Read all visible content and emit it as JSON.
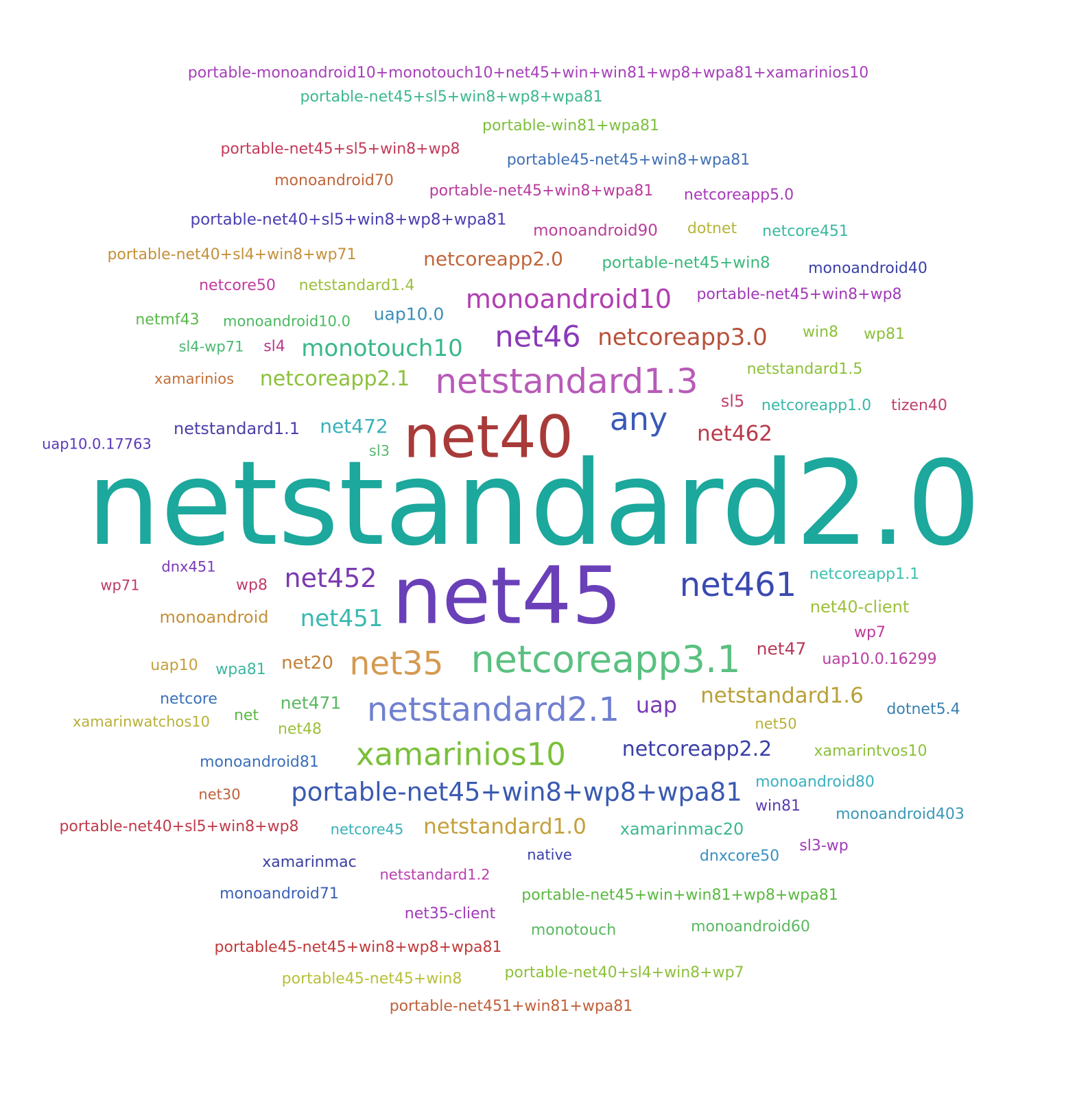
{
  "words": [
    {
      "text": "portable-monoandroid10+monotouch10+net45+win+win81+wp8+wpa81+xamarinios10",
      "color": "#a640b8"
    },
    {
      "text": "portable-net45+sl5+win8+wp8+wpa81",
      "color": "#3db88e"
    },
    {
      "text": "portable-win81+wpa81",
      "color": "#7bbf3a"
    },
    {
      "text": "portable-net45+sl5+win8+wp8",
      "color": "#c23a5a"
    },
    {
      "text": "portable45-net45+win8+wpa81",
      "color": "#3f6fb5"
    },
    {
      "text": "monoandroid70",
      "color": "#c0653a"
    },
    {
      "text": "portable-net45+win8+wpa81",
      "color": "#b83a9e"
    },
    {
      "text": "netcoreapp5.0",
      "color": "#a63ab8"
    },
    {
      "text": "portable-net40+sl5+win8+wp8+wpa81",
      "color": "#4a3fb0"
    },
    {
      "text": "monoandroid90",
      "color": "#b8409a"
    },
    {
      "text": "dotnet",
      "color": "#b5b53a"
    },
    {
      "text": "netcore451",
      "color": "#3ab8a0"
    },
    {
      "text": "portable-net40+sl4+win8+wp71",
      "color": "#c4903a"
    },
    {
      "text": "netcoreapp2.0",
      "color": "#c0663a"
    },
    {
      "text": "portable-net45+win8",
      "color": "#3ab87a"
    },
    {
      "text": "monoandroid40",
      "color": "#3a3fa8"
    },
    {
      "text": "netcore50",
      "color": "#c03aa0"
    },
    {
      "text": "netstandard1.4",
      "color": "#9cbf3a"
    },
    {
      "text": "monoandroid10",
      "color": "#b040b0"
    },
    {
      "text": "portable-net45+win8+wp8",
      "color": "#a03ab8"
    },
    {
      "text": "netmf43",
      "color": "#5ab84a"
    },
    {
      "text": "monoandroid10.0",
      "color": "#4ab860"
    },
    {
      "text": "uap10.0",
      "color": "#3a90b8"
    },
    {
      "text": "net46",
      "color": "#8a3ab8"
    },
    {
      "text": "netcoreapp3.0",
      "color": "#b8503a"
    },
    {
      "text": "win8",
      "color": "#8cc03a"
    },
    {
      "text": "wp81",
      "color": "#8cc03a"
    },
    {
      "text": "sl4-wp71",
      "color": "#4ab870"
    },
    {
      "text": "sl4",
      "color": "#b83a8a"
    },
    {
      "text": "monotouch10",
      "color": "#3ab88a"
    },
    {
      "text": "netstandard1.3",
      "color": "#b85ab8"
    },
    {
      "text": "netstandard1.5",
      "color": "#8cc03a"
    },
    {
      "text": "xamarinios",
      "color": "#c0703a"
    },
    {
      "text": "netcoreapp2.1",
      "color": "#8cc03a"
    },
    {
      "text": "sl5",
      "color": "#c0406a"
    },
    {
      "text": "netcoreapp1.0",
      "color": "#3ab8a8"
    },
    {
      "text": "tizen40",
      "color": "#c0406a"
    },
    {
      "text": "any",
      "color": "#3a5ab8"
    },
    {
      "text": "netstandard1.1",
      "color": "#4a3fa8"
    },
    {
      "text": "net472",
      "color": "#3ab0b8"
    },
    {
      "text": "net40",
      "color": "#a83a3a"
    },
    {
      "text": "net462",
      "color": "#b83a4a"
    },
    {
      "text": "uap10.0.17763",
      "color": "#5a3ab8"
    },
    {
      "text": "sl3",
      "color": "#5ab870"
    },
    {
      "text": "netstandard2.0",
      "color": "#1ca89c"
    },
    {
      "text": "dnx451",
      "color": "#7a3ab8"
    },
    {
      "text": "wp71",
      "color": "#c03a6a"
    },
    {
      "text": "wp8",
      "color": "#c03a6a"
    },
    {
      "text": "net452",
      "color": "#7a3ab0"
    },
    {
      "text": "net45",
      "color": "#6a40b8"
    },
    {
      "text": "net461",
      "color": "#3a4ab0"
    },
    {
      "text": "netcoreapp1.1",
      "color": "#3ac0b0"
    },
    {
      "text": "monoandroid",
      "color": "#c4903a"
    },
    {
      "text": "net451",
      "color": "#3ab8b0"
    },
    {
      "text": "net40-client",
      "color": "#9cc03a"
    },
    {
      "text": "wp7",
      "color": "#c03a9a"
    },
    {
      "text": "net47",
      "color": "#b83a5a"
    },
    {
      "text": "uap10.0.16299",
      "color": "#b840a0"
    },
    {
      "text": "uap10",
      "color": "#c4a03a"
    },
    {
      "text": "wpa81",
      "color": "#3ab8a0"
    },
    {
      "text": "net20",
      "color": "#c0803a"
    },
    {
      "text": "net35",
      "color": "#d49a50"
    },
    {
      "text": "netcoreapp3.1",
      "color": "#5ac080"
    },
    {
      "text": "netcore",
      "color": "#3a70b8"
    },
    {
      "text": "net",
      "color": "#5ab840"
    },
    {
      "text": "net471",
      "color": "#5ab860"
    },
    {
      "text": "netstandard2.1",
      "color": "#7080d0"
    },
    {
      "text": "uap",
      "color": "#7a3ab8"
    },
    {
      "text": "netstandard1.6",
      "color": "#b8a03a"
    },
    {
      "text": "dotnet5.4",
      "color": "#3a80b0"
    },
    {
      "text": "xamarinwatchos10",
      "color": "#b8b03a"
    },
    {
      "text": "net48",
      "color": "#9cc03a"
    },
    {
      "text": "net50",
      "color": "#b8b03a"
    },
    {
      "text": "xamarinios10",
      "color": "#7abf3a"
    },
    {
      "text": "netcoreapp2.2",
      "color": "#3a3fa8"
    },
    {
      "text": "monoandroid81",
      "color": "#3a70b8"
    },
    {
      "text": "xamarintvos10",
      "color": "#8cc03a"
    },
    {
      "text": "portable-net45+win8+wp8+wpa81",
      "color": "#3a5ab0"
    },
    {
      "text": "monoandroid80",
      "color": "#3ab0c0"
    },
    {
      "text": "net30",
      "color": "#c0603a"
    },
    {
      "text": "win81",
      "color": "#5a3ab0"
    },
    {
      "text": "monoandroid403",
      "color": "#3a98b8"
    },
    {
      "text": "portable-net40+sl5+win8+wp8",
      "color": "#c03a4a"
    },
    {
      "text": "netcore45",
      "color": "#3ab0b8"
    },
    {
      "text": "netstandard1.0",
      "color": "#c4a03a"
    },
    {
      "text": "xamarinmac20",
      "color": "#3ab890"
    },
    {
      "text": "sl3-wp",
      "color": "#a03ab8"
    },
    {
      "text": "xamarinmac",
      "color": "#3a3fa0"
    },
    {
      "text": "native",
      "color": "#3a3fa8"
    },
    {
      "text": "dnxcore50",
      "color": "#3a90c0"
    },
    {
      "text": "netstandard1.2",
      "color": "#b840b0"
    },
    {
      "text": "monoandroid71",
      "color": "#3a60b8"
    },
    {
      "text": "portable-net45+win+win81+wp8+wpa81",
      "color": "#5ab840"
    },
    {
      "text": "net35-client",
      "color": "#a03ab8"
    },
    {
      "text": "monotouch",
      "color": "#5ab860"
    },
    {
      "text": "monoandroid60",
      "color": "#5ab860"
    },
    {
      "text": "portable45-net45+win8+wp8+wpa81",
      "color": "#c03a3a"
    },
    {
      "text": "portable45-net45+win8",
      "color": "#b8c03a"
    },
    {
      "text": "portable-net40+sl4+win8+wp7",
      "color": "#8cc03a"
    },
    {
      "text": "portable-net451+win81+wpa81",
      "color": "#c0603a"
    }
  ]
}
